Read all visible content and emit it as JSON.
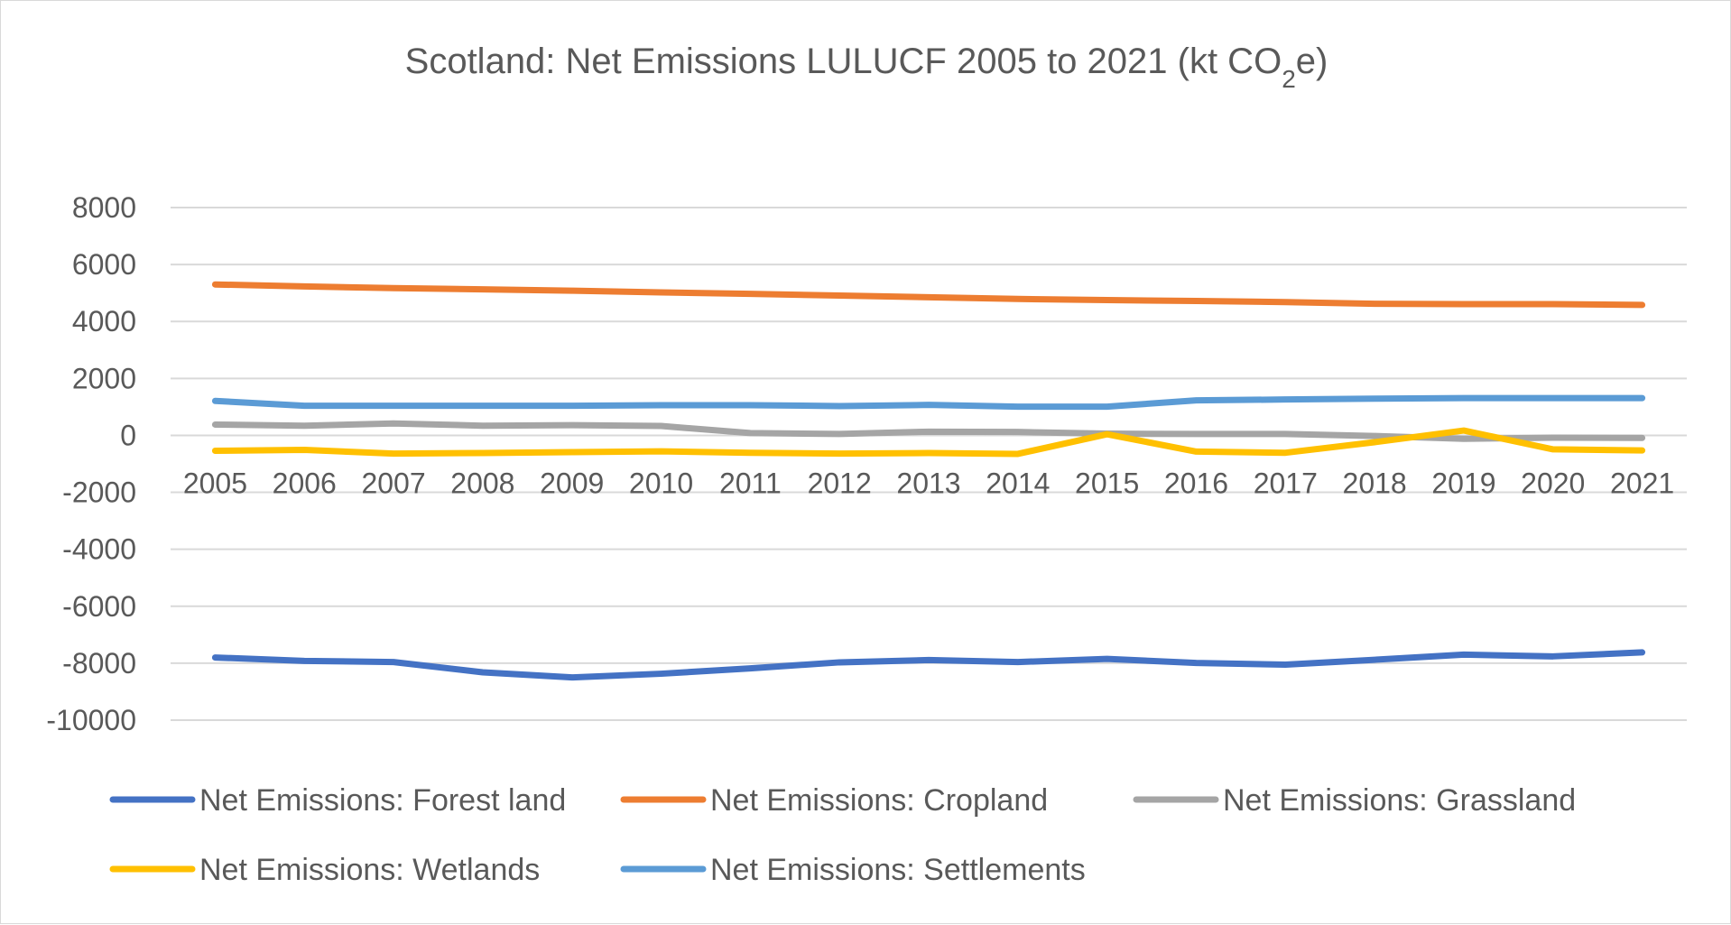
{
  "chart_data": {
    "type": "line",
    "title": {
      "prefix": "Scotland: Net Emissions LULUCF 2005 to 2021 (kt CO",
      "subscript": "2",
      "suffix": "e)"
    },
    "xlabel": "",
    "ylabel": "",
    "ylim": [
      -10000,
      8000
    ],
    "yticks": [
      8000,
      6000,
      4000,
      2000,
      0,
      -2000,
      -4000,
      -6000,
      -8000,
      -10000
    ],
    "grid": true,
    "legend_position": "bottom",
    "categories": [
      "2005",
      "2006",
      "2007",
      "2008",
      "2009",
      "2010",
      "2011",
      "2012",
      "2013",
      "2014",
      "2015",
      "2016",
      "2017",
      "2018",
      "2019",
      "2020",
      "2021"
    ],
    "series": [
      {
        "name": "Net Emissions: Forest land",
        "color": "#4472C4",
        "values": [
          -7800,
          -7920,
          -7960,
          -8320,
          -8500,
          -8370,
          -8180,
          -7970,
          -7890,
          -7960,
          -7850,
          -7990,
          -8050,
          -7880,
          -7700,
          -7760,
          -7620
        ]
      },
      {
        "name": "Net Emissions: Cropland",
        "color": "#ED7D31",
        "values": [
          5300,
          5230,
          5170,
          5130,
          5080,
          5020,
          4970,
          4910,
          4850,
          4790,
          4750,
          4720,
          4680,
          4620,
          4610,
          4610,
          4580
        ]
      },
      {
        "name": "Net Emissions: Grassland",
        "color": "#A5A5A5",
        "values": [
          380,
          340,
          420,
          340,
          360,
          330,
          80,
          50,
          130,
          120,
          60,
          50,
          50,
          -20,
          -120,
          -80,
          -90
        ]
      },
      {
        "name": "Net Emissions: Wetlands",
        "color": "#FFC000",
        "values": [
          -540,
          -510,
          -640,
          -620,
          -590,
          -560,
          -610,
          -640,
          -620,
          -650,
          40,
          -570,
          -610,
          -240,
          170,
          -490,
          -530
        ]
      },
      {
        "name": "Net Emissions: Settlements",
        "color": "#5B9BD5",
        "values": [
          1210,
          1040,
          1040,
          1040,
          1040,
          1060,
          1060,
          1030,
          1070,
          1010,
          1010,
          1230,
          1260,
          1290,
          1310,
          1310,
          1310
        ]
      }
    ]
  }
}
